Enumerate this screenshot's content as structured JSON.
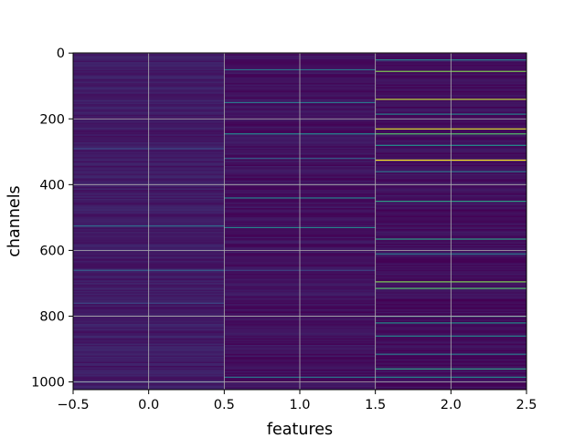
{
  "chart_data": {
    "type": "heatmap",
    "title": "",
    "xlabel": "features",
    "ylabel": "channels",
    "xlim": [
      -0.5,
      2.5
    ],
    "ylim": [
      1023.5,
      -0.5
    ],
    "y_axis_inverted": true,
    "grid": true,
    "colormap": "viridis",
    "columns": [
      0,
      1,
      2
    ],
    "rows": 1024,
    "xticks": [
      "−0.5",
      "0.0",
      "0.5",
      "1.0",
      "1.5",
      "2.0",
      "2.5"
    ],
    "xtick_values": [
      -0.5,
      0.0,
      0.5,
      1.0,
      1.5,
      2.0,
      2.5
    ],
    "yticks": [
      "0",
      "200",
      "400",
      "600",
      "800",
      "1000"
    ],
    "ytick_values": [
      0,
      200,
      400,
      600,
      800,
      1000
    ],
    "column_baseline": [
      0.08,
      0.05,
      0.04
    ],
    "highlight_rows": [
      {
        "col": 0,
        "channel": 525,
        "value": 0.35
      },
      {
        "col": 0,
        "channel": 660,
        "value": 0.3
      },
      {
        "col": 0,
        "channel": 290,
        "value": 0.22
      },
      {
        "col": 0,
        "channel": 760,
        "value": 0.22
      },
      {
        "col": 0,
        "channel": 1000,
        "value": 0.22
      },
      {
        "col": 1,
        "channel": 50,
        "value": 0.4
      },
      {
        "col": 1,
        "channel": 150,
        "value": 0.4
      },
      {
        "col": 1,
        "channel": 245,
        "value": 0.45
      },
      {
        "col": 1,
        "channel": 320,
        "value": 0.3
      },
      {
        "col": 1,
        "channel": 440,
        "value": 0.45
      },
      {
        "col": 1,
        "channel": 530,
        "value": 0.45
      },
      {
        "col": 1,
        "channel": 660,
        "value": 0.2
      },
      {
        "col": 1,
        "channel": 985,
        "value": 0.4
      },
      {
        "col": 2,
        "channel": 20,
        "value": 0.45
      },
      {
        "col": 2,
        "channel": 55,
        "value": 0.8
      },
      {
        "col": 2,
        "channel": 140,
        "value": 0.9
      },
      {
        "col": 2,
        "channel": 185,
        "value": 0.45
      },
      {
        "col": 2,
        "channel": 230,
        "value": 0.95
      },
      {
        "col": 2,
        "channel": 245,
        "value": 0.7
      },
      {
        "col": 2,
        "channel": 280,
        "value": 0.5
      },
      {
        "col": 2,
        "channel": 325,
        "value": 1.0
      },
      {
        "col": 2,
        "channel": 360,
        "value": 0.4
      },
      {
        "col": 2,
        "channel": 450,
        "value": 0.55
      },
      {
        "col": 2,
        "channel": 565,
        "value": 0.55
      },
      {
        "col": 2,
        "channel": 610,
        "value": 0.4
      },
      {
        "col": 2,
        "channel": 695,
        "value": 0.8
      },
      {
        "col": 2,
        "channel": 715,
        "value": 0.7
      },
      {
        "col": 2,
        "channel": 800,
        "value": 0.5
      },
      {
        "col": 2,
        "channel": 820,
        "value": 0.5
      },
      {
        "col": 2,
        "channel": 860,
        "value": 0.45
      },
      {
        "col": 2,
        "channel": 915,
        "value": 0.4
      },
      {
        "col": 2,
        "channel": 960,
        "value": 0.55
      },
      {
        "col": 2,
        "channel": 985,
        "value": 0.45
      }
    ]
  }
}
